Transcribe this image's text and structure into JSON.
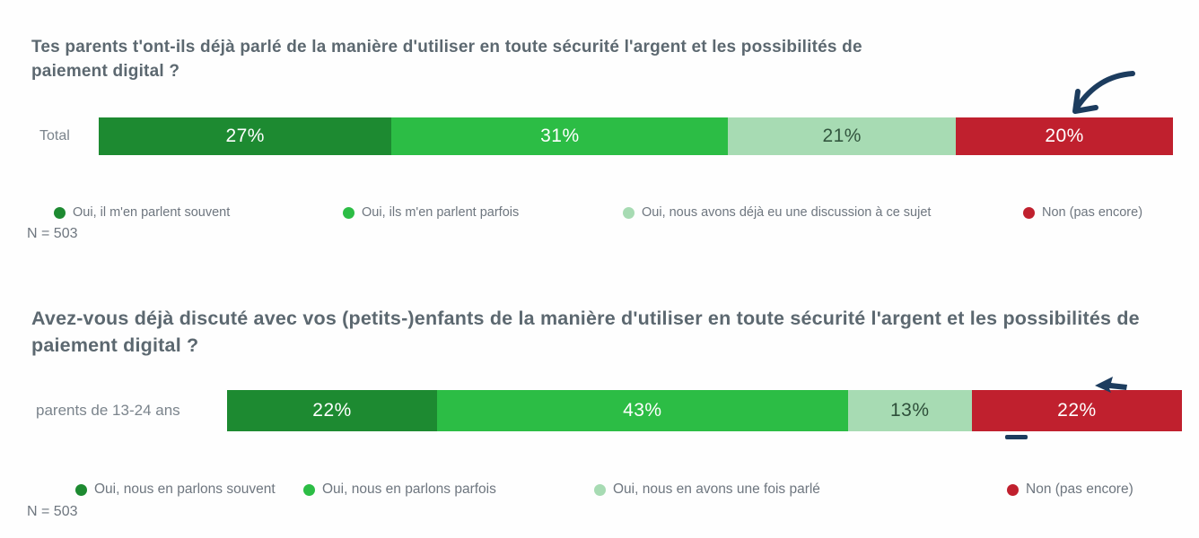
{
  "chart_data": [
    {
      "type": "bar",
      "orientation": "horizontal",
      "stacked": true,
      "title": "Tes parents t'ont-ils déjà parlé de la manière d'utiliser en toute sécurité l'argent et les possibilités de paiement digital ?",
      "categories": [
        "Total"
      ],
      "series": [
        {
          "name": "Oui, il m'en parlent souvent",
          "values": [
            27
          ],
          "color": "#1d8a31",
          "label_color": "#ffffff"
        },
        {
          "name": "Oui, ils m'en parlent parfois",
          "values": [
            31
          ],
          "color": "#2cbd45",
          "label_color": "#ffffff"
        },
        {
          "name": "Oui, nous avons déjà eu une discussion à ce sujet",
          "values": [
            21
          ],
          "color": "#a7dbb3",
          "label_color": "#33563f"
        },
        {
          "name": "Non (pas encore)",
          "values": [
            20
          ],
          "color": "#c0202e",
          "label_color": "#ffffff"
        }
      ],
      "value_suffix": "%",
      "xlim": [
        0,
        100
      ],
      "legend_position": "bottom",
      "sample_label": "N = 503",
      "annotation": "hand-drawn navy arrow pointing to the red 'Non (pas encore)' segment"
    },
    {
      "type": "bar",
      "orientation": "horizontal",
      "stacked": true,
      "title": "Avez-vous déjà discuté avec vos (petits-)enfants de la manière d'utiliser en toute sécurité l'argent et les possibilités de paiement digital ?",
      "categories": [
        "parents de 13-24 ans"
      ],
      "series": [
        {
          "name": "Oui, nous en parlons souvent",
          "values": [
            22
          ],
          "color": "#1d8a31",
          "label_color": "#ffffff"
        },
        {
          "name": "Oui, nous en parlons parfois",
          "values": [
            43
          ],
          "color": "#2cbd45",
          "label_color": "#ffffff"
        },
        {
          "name": "Oui, nous en avons une fois parlé",
          "values": [
            13
          ],
          "color": "#a7dbb3",
          "label_color": "#2e4f3a"
        },
        {
          "name": "Non (pas encore)",
          "values": [
            22
          ],
          "color": "#c0202e",
          "label_color": "#ffffff"
        }
      ],
      "value_suffix": "%",
      "xlim": [
        0,
        100
      ],
      "legend_position": "bottom",
      "sample_label": "N = 503",
      "annotation": "partially cropped navy arrow tip and dash marking the red 'Non (pas encore)' segment"
    }
  ],
  "annotation_color": "#1c3c5e"
}
